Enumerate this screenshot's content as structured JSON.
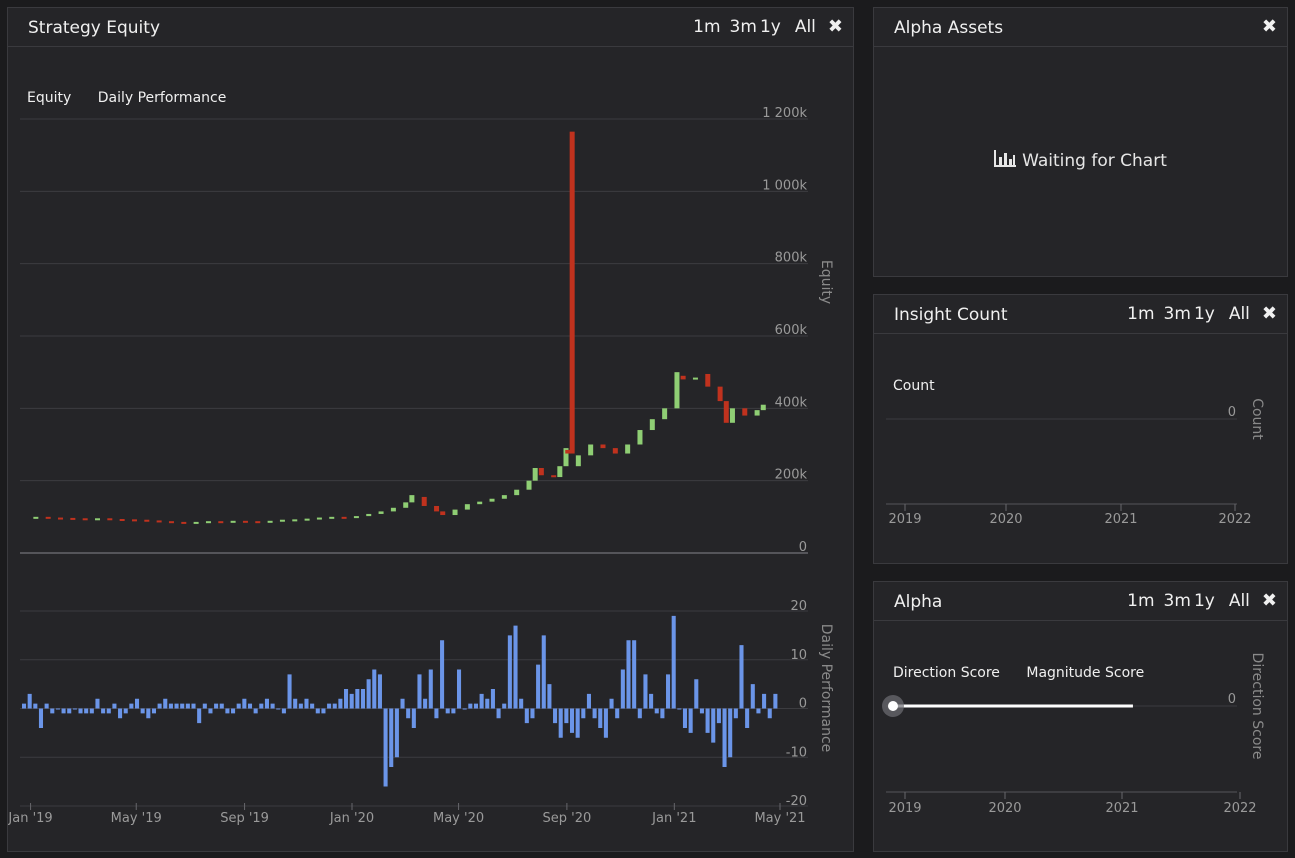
{
  "equity_panel": {
    "title": "Strategy Equity",
    "ranges": [
      "1m",
      "3m",
      "1y",
      "All"
    ],
    "close_icon": "close-icon",
    "legend": [
      "Equity",
      "Daily Performance"
    ]
  },
  "alpha_assets_panel": {
    "title": "Alpha Assets",
    "close_icon": "close-icon",
    "waiting_icon": "bar-chart-icon",
    "waiting_text": "Waiting for Chart"
  },
  "insight_panel": {
    "title": "Insight Count",
    "ranges": [
      "1m",
      "3m",
      "1y",
      "All"
    ],
    "close_icon": "close-icon",
    "legend": [
      "Count"
    ]
  },
  "alpha_panel": {
    "title": "Alpha",
    "ranges": [
      "1m",
      "3m",
      "1y",
      "All"
    ],
    "close_icon": "close-icon",
    "legend": [
      "Direction Score",
      "Magnitude Score"
    ]
  },
  "colors": {
    "up": "#8fce74",
    "down": "#c0321e",
    "perf": "#6b95e8",
    "grid": "#3c3c40",
    "axis_text": "#9a9a9a"
  },
  "chart_data": [
    {
      "id": "equity",
      "type": "candlestick",
      "ylabel": "Equity",
      "y_ticks": [
        "0",
        "200k",
        "400k",
        "600k",
        "800k",
        "1 000k",
        "1 200k"
      ],
      "ylim": [
        0,
        1200000
      ],
      "x_ticks": [
        "Jan '19",
        "May '19",
        "Sep '19",
        "Jan '20",
        "May '20",
        "Sep '20",
        "Jan '21",
        "May '21"
      ],
      "x_tick_dates": [
        "2019-01-01",
        "2019-05-01",
        "2019-09-01",
        "2020-01-01",
        "2020-05-01",
        "2020-09-01",
        "2021-01-01",
        "2021-05-01"
      ],
      "candles": [
        [
          "2019-01-07",
          100000,
          100000
        ],
        [
          "2019-01-21",
          100000,
          98000
        ],
        [
          "2019-02-04",
          98000,
          97000
        ],
        [
          "2019-02-18",
          97000,
          96000
        ],
        [
          "2019-03-04",
          96000,
          95000
        ],
        [
          "2019-03-18",
          95000,
          96000
        ],
        [
          "2019-04-01",
          96000,
          94000
        ],
        [
          "2019-04-15",
          94000,
          93000
        ],
        [
          "2019-04-29",
          93000,
          92000
        ],
        [
          "2019-05-13",
          92000,
          90000
        ],
        [
          "2019-05-27",
          90000,
          88000
        ],
        [
          "2019-06-10",
          88000,
          86000
        ],
        [
          "2019-06-24",
          86000,
          85000
        ],
        [
          "2019-07-08",
          85000,
          86000
        ],
        [
          "2019-07-22",
          86000,
          88000
        ],
        [
          "2019-08-05",
          88000,
          87000
        ],
        [
          "2019-08-19",
          87000,
          89000
        ],
        [
          "2019-09-02",
          89000,
          88000
        ],
        [
          "2019-09-16",
          88000,
          87000
        ],
        [
          "2019-09-30",
          87000,
          89000
        ],
        [
          "2019-10-14",
          89000,
          92000
        ],
        [
          "2019-10-28",
          92000,
          93000
        ],
        [
          "2019-11-11",
          93000,
          95000
        ],
        [
          "2019-11-25",
          95000,
          98000
        ],
        [
          "2019-12-09",
          98000,
          100000
        ],
        [
          "2019-12-23",
          100000,
          99000
        ],
        [
          "2020-01-06",
          99000,
          102000
        ],
        [
          "2020-01-20",
          102000,
          108000
        ],
        [
          "2020-02-03",
          108000,
          115000
        ],
        [
          "2020-02-17",
          115000,
          125000
        ],
        [
          "2020-03-02",
          125000,
          140000
        ],
        [
          "2020-03-09",
          140000,
          160000
        ],
        [
          "2020-03-23",
          155000,
          130000
        ],
        [
          "2020-04-06",
          130000,
          115000
        ],
        [
          "2020-04-13",
          115000,
          105000
        ],
        [
          "2020-04-27",
          105000,
          120000
        ],
        [
          "2020-05-11",
          120000,
          135000
        ],
        [
          "2020-05-25",
          135000,
          142000
        ],
        [
          "2020-06-08",
          142000,
          150000
        ],
        [
          "2020-06-22",
          150000,
          160000
        ],
        [
          "2020-07-06",
          160000,
          175000
        ],
        [
          "2020-07-20",
          175000,
          200000
        ],
        [
          "2020-07-27",
          200000,
          235000
        ],
        [
          "2020-08-03",
          235000,
          215000
        ],
        [
          "2020-08-17",
          215000,
          210000
        ],
        [
          "2020-08-24",
          210000,
          240000
        ],
        [
          "2020-08-31",
          240000,
          290000
        ],
        [
          "2020-09-02",
          285000,
          275000
        ],
        [
          "2020-09-07",
          1165000,
          275000
        ],
        [
          "2020-09-14",
          240000,
          270000
        ],
        [
          "2020-09-28",
          270000,
          300000
        ],
        [
          "2020-10-12",
          300000,
          290000
        ],
        [
          "2020-10-26",
          290000,
          275000
        ],
        [
          "2020-11-09",
          275000,
          300000
        ],
        [
          "2020-11-23",
          300000,
          340000
        ],
        [
          "2020-12-07",
          340000,
          370000
        ],
        [
          "2020-12-21",
          370000,
          400000
        ],
        [
          "2021-01-04",
          400000,
          500000
        ],
        [
          "2021-01-11",
          490000,
          480000
        ],
        [
          "2021-01-25",
          480000,
          485000
        ],
        [
          "2021-02-08",
          495000,
          460000
        ],
        [
          "2021-02-22",
          460000,
          420000
        ],
        [
          "2021-03-01",
          420000,
          360000
        ],
        [
          "2021-03-08",
          360000,
          400000
        ],
        [
          "2021-03-22",
          400000,
          380000
        ],
        [
          "2021-04-05",
          380000,
          395000
        ],
        [
          "2021-04-12",
          395000,
          410000
        ]
      ]
    },
    {
      "id": "daily_performance",
      "type": "bar",
      "ylabel": "Daily Performance",
      "y_ticks": [
        "20",
        "10",
        "0",
        "-10",
        "-20"
      ],
      "ylim": [
        -20,
        20
      ],
      "values": [
        1,
        3,
        1,
        -4,
        1,
        -1,
        0,
        -1,
        -1,
        0,
        -1,
        -1,
        -1,
        2,
        -1,
        -1,
        1,
        -2,
        -1,
        1,
        2,
        -1,
        -2,
        -1,
        1,
        2,
        1,
        1,
        1,
        1,
        1,
        -3,
        1,
        -1,
        1,
        1,
        -1,
        -1,
        1,
        2,
        1,
        -1,
        1,
        2,
        1,
        0,
        -1,
        7,
        2,
        1,
        2,
        1,
        -1,
        -1,
        1,
        1,
        2,
        4,
        3,
        4,
        4,
        6,
        8,
        7,
        -16,
        -12,
        -10,
        2,
        -2,
        -4,
        7,
        2,
        8,
        -2,
        14,
        -1,
        -1,
        8,
        0,
        1,
        1,
        3,
        2,
        4,
        -2,
        1,
        15,
        17,
        2,
        -3,
        -2,
        9,
        15,
        5,
        -3,
        -6,
        -3,
        -5,
        -6,
        -2,
        3,
        -2,
        -4,
        -6,
        2,
        -2,
        8,
        14,
        14,
        -2,
        7,
        3,
        -1,
        -2,
        7,
        19,
        0,
        -4,
        -5,
        6,
        -1,
        -5,
        -7,
        -3,
        -12,
        -10,
        -2,
        13,
        -4,
        5,
        -1,
        3,
        -2,
        3
      ]
    },
    {
      "id": "insight_count",
      "type": "line",
      "ylabel": "Count",
      "y_ticks": [
        "0"
      ],
      "x_ticks": [
        "2019",
        "2020",
        "2021",
        "2022"
      ],
      "values": []
    },
    {
      "id": "alpha",
      "type": "line",
      "ylabel": "Direction Score",
      "y_ticks": [
        "0"
      ],
      "x_ticks": [
        "2019",
        "2020",
        "2021",
        "2022"
      ],
      "x": [
        "2019-01-01",
        "2021-04-12"
      ],
      "y": [
        0,
        0
      ]
    }
  ]
}
